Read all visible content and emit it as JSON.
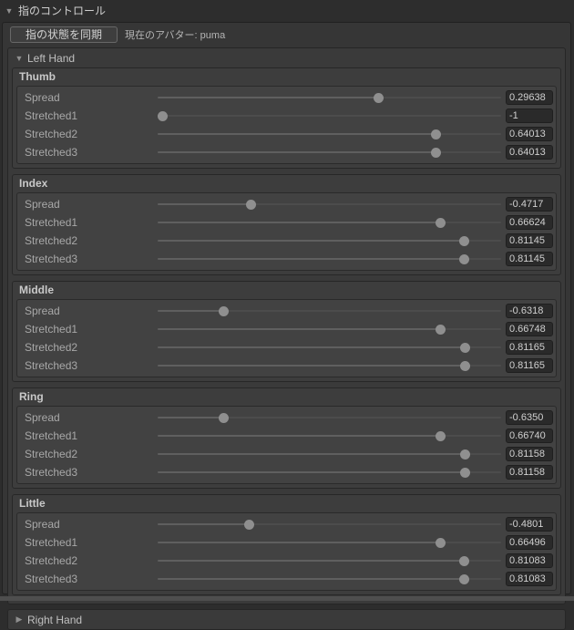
{
  "window": {
    "title": "指のコントロール",
    "expanded_arrow": "▼",
    "collapsed_arrow": "▶"
  },
  "toolbar": {
    "sync_button_label": "指の状態を同期",
    "avatar_label": "現在のアバター: puma"
  },
  "slider_range": {
    "min": -1,
    "max": 1
  },
  "left_hand": {
    "label": "Left Hand",
    "expanded": true,
    "fingers": [
      {
        "name": "Thumb",
        "params": [
          {
            "label": "Spread",
            "value": 0.29638,
            "display": "0.29638"
          },
          {
            "label": "Stretched1",
            "value": -1,
            "display": "-1"
          },
          {
            "label": "Stretched2",
            "value": 0.64013,
            "display": "0.64013"
          },
          {
            "label": "Stretched3",
            "value": 0.64013,
            "display": "0.64013"
          }
        ]
      },
      {
        "name": "Index",
        "params": [
          {
            "label": "Spread",
            "value": -0.4717,
            "display": "-0.4717"
          },
          {
            "label": "Stretched1",
            "value": 0.66624,
            "display": "0.66624"
          },
          {
            "label": "Stretched2",
            "value": 0.81145,
            "display": "0.81145"
          },
          {
            "label": "Stretched3",
            "value": 0.81145,
            "display": "0.81145"
          }
        ]
      },
      {
        "name": "Middle",
        "params": [
          {
            "label": "Spread",
            "value": -0.6318,
            "display": "-0.6318"
          },
          {
            "label": "Stretched1",
            "value": 0.66748,
            "display": "0.66748"
          },
          {
            "label": "Stretched2",
            "value": 0.81165,
            "display": "0.81165"
          },
          {
            "label": "Stretched3",
            "value": 0.81165,
            "display": "0.81165"
          }
        ]
      },
      {
        "name": "Ring",
        "params": [
          {
            "label": "Spread",
            "value": -0.635,
            "display": "-0.6350"
          },
          {
            "label": "Stretched1",
            "value": 0.6674,
            "display": "0.66740"
          },
          {
            "label": "Stretched2",
            "value": 0.81158,
            "display": "0.81158"
          },
          {
            "label": "Stretched3",
            "value": 0.81158,
            "display": "0.81158"
          }
        ]
      },
      {
        "name": "Little",
        "params": [
          {
            "label": "Spread",
            "value": -0.4801,
            "display": "-0.4801"
          },
          {
            "label": "Stretched1",
            "value": 0.66496,
            "display": "0.66496"
          },
          {
            "label": "Stretched2",
            "value": 0.81083,
            "display": "0.81083"
          },
          {
            "label": "Stretched3",
            "value": 0.81083,
            "display": "0.81083"
          }
        ]
      }
    ]
  },
  "right_hand": {
    "label": "Right Hand",
    "expanded": false
  },
  "colors": {
    "window_bg": "#2d2d2d",
    "panel_bg": "#363636",
    "box_bg": "#3a3a3a",
    "inner_box_bg": "#424242",
    "field_bg": "#2a2a2a",
    "slider_handle": "#8f8f8f",
    "slider_track": "#4c4c4c",
    "bottom_strip": "#4e4e4e"
  }
}
